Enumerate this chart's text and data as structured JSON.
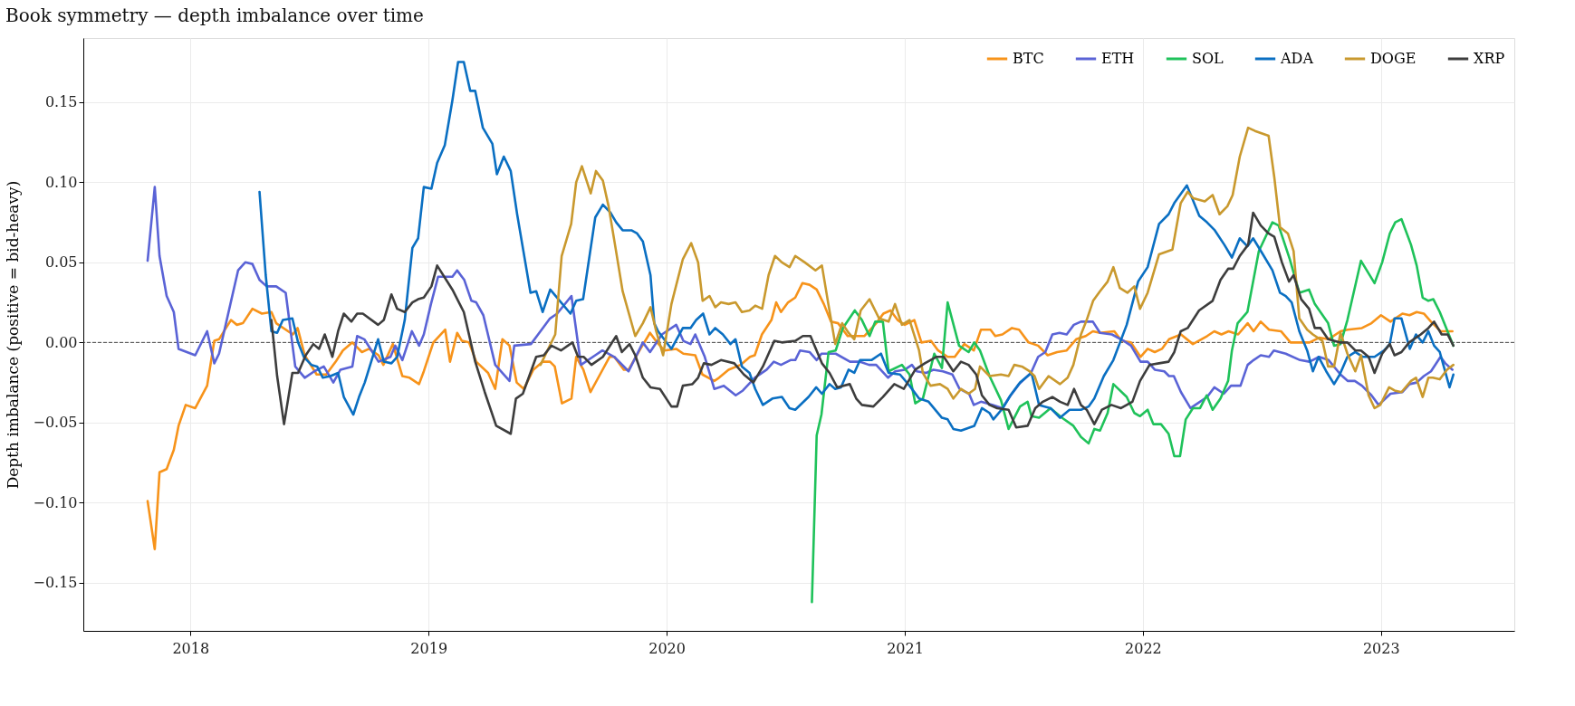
{
  "chart_data": {
    "type": "line",
    "title": "Book symmetry — depth imbalance over time",
    "ylabel": "Depth imbalance  (positive = bid-heavy)",
    "xlim": [
      2017.55,
      2023.56
    ],
    "xticks": [
      2018,
      2019,
      2020,
      2021,
      2022,
      2023
    ],
    "ylim": [
      -0.18,
      0.19
    ],
    "yticks": [
      {
        "value": -0.15,
        "label": "−0.15"
      },
      {
        "value": -0.1,
        "label": "−0.10"
      },
      {
        "value": -0.05,
        "label": "−0.05"
      },
      {
        "value": 0,
        "label": "0.00"
      },
      {
        "value": 0.05,
        "label": "0.05"
      },
      {
        "value": 0.1,
        "label": "0.10"
      },
      {
        "value": 0.15,
        "label": "0.15"
      }
    ],
    "grid": true,
    "legend": "top right",
    "marker": "none",
    "line_style": "solid",
    "ref_lines": [
      {
        "axis": "y",
        "value": 0,
        "color": "#444444",
        "line_style": "dashed"
      }
    ],
    "series": [
      {
        "name": "BTC",
        "color": "#f7931a",
        "x": [
          2017.82,
          2017.85,
          2017.87,
          2017.9,
          2017.93,
          2017.95,
          2017.98,
          2018.02,
          2018.07,
          2018.1,
          2018.12,
          2018.145,
          2018.17,
          2018.195,
          2018.22,
          2018.26,
          2018.3,
          2018.34,
          2018.36,
          2018.43,
          2018.45,
          2018.48,
          2018.53,
          2018.57,
          2018.61,
          2018.64,
          2018.68,
          2018.72,
          2018.75,
          2018.79,
          2018.81,
          2018.85,
          2018.89,
          2018.92,
          2018.96,
          2018.98,
          2019.02,
          2019.07,
          2019.09,
          2019.12,
          2019.14,
          2019.17,
          2019.2,
          2019.25,
          2019.28,
          2019.31,
          2019.34,
          2019.37,
          2019.4,
          2019.44,
          2019.48,
          2019.51,
          2019.53,
          2019.56,
          2019.6,
          2019.62,
          2019.65,
          2019.68,
          2019.72,
          2019.76,
          2019.78,
          2019.82,
          2019.84,
          2019.89,
          2019.93,
          2019.96,
          2019.99,
          2020.04,
          2020.07,
          2020.12,
          2020.15,
          2020.2,
          2020.22,
          2020.26,
          2020.31,
          2020.35,
          2020.37,
          2020.4,
          2020.44,
          2020.46,
          2020.48,
          2020.51,
          2020.54,
          2020.57,
          2020.6,
          2020.63,
          2020.66,
          2020.69,
          2020.72,
          2020.76,
          2020.8,
          2020.83,
          2020.88,
          2020.91,
          2020.94,
          2020.97,
          2021.0,
          2021.04,
          2021.07,
          2021.11,
          2021.14,
          2021.18,
          2021.21,
          2021.25,
          2021.29,
          2021.32,
          2021.36,
          2021.38,
          2021.41,
          2021.45,
          2021.48,
          2021.52,
          2021.56,
          2021.6,
          2021.64,
          2021.68,
          2021.72,
          2021.76,
          2021.79,
          2021.82,
          2021.88,
          2021.91,
          2021.95,
          2021.99,
          2022.02,
          2022.05,
          2022.08,
          2022.11,
          2022.16,
          2022.21,
          2022.27,
          2022.3,
          2022.33,
          2022.36,
          2022.4,
          2022.44,
          2022.465,
          2022.495,
          2022.53,
          2022.58,
          2022.62,
          2022.665,
          2022.7,
          2022.74,
          2022.78,
          2022.83,
          2022.86,
          2022.92,
          2022.96,
          2023.0,
          2023.04,
          2023.09,
          2023.12,
          2023.15,
          2023.18,
          2023.21,
          2023.25,
          2023.3
        ],
        "values": [
          -0.099,
          -0.129,
          -0.081,
          -0.079,
          -0.067,
          -0.052,
          -0.039,
          -0.041,
          -0.027,
          0.001,
          0.002,
          0.008,
          0.014,
          0.011,
          0.012,
          0.021,
          0.018,
          0.019,
          0.012,
          0.005,
          0.009,
          -0.008,
          -0.02,
          -0.02,
          -0.012,
          -0.005,
          0.0,
          -0.006,
          -0.004,
          -0.008,
          -0.014,
          -0.001,
          -0.021,
          -0.022,
          -0.026,
          -0.018,
          0.0,
          0.008,
          -0.012,
          0.006,
          0.001,
          0.0,
          -0.012,
          -0.019,
          -0.029,
          0.002,
          -0.002,
          -0.025,
          -0.029,
          -0.017,
          -0.012,
          -0.012,
          -0.015,
          -0.038,
          -0.035,
          -0.009,
          -0.017,
          -0.031,
          -0.02,
          -0.009,
          -0.009,
          -0.017,
          -0.017,
          -0.004,
          0.006,
          0.0,
          -0.005,
          -0.004,
          -0.007,
          -0.008,
          -0.02,
          -0.024,
          -0.022,
          -0.017,
          -0.014,
          -0.009,
          -0.008,
          0.005,
          0.014,
          0.025,
          0.019,
          0.025,
          0.028,
          0.037,
          0.036,
          0.033,
          0.024,
          0.013,
          0.012,
          0.004,
          0.004,
          0.004,
          0.012,
          0.018,
          0.02,
          0.014,
          0.011,
          0.014,
          0.0,
          0.001,
          -0.005,
          -0.009,
          -0.009,
          -0.001,
          -0.005,
          0.008,
          0.008,
          0.004,
          0.005,
          0.009,
          0.008,
          0.0,
          -0.002,
          -0.008,
          -0.006,
          -0.005,
          0.002,
          0.004,
          0.007,
          0.006,
          0.007,
          0.001,
          0.0,
          -0.009,
          -0.004,
          -0.006,
          -0.004,
          0.002,
          0.005,
          -0.001,
          0.004,
          0.007,
          0.005,
          0.007,
          0.005,
          0.012,
          0.007,
          0.013,
          0.008,
          0.007,
          0.0,
          0.0,
          0.0,
          0.003,
          0.002,
          0.007,
          0.008,
          0.009,
          0.012,
          0.017,
          0.013,
          0.018,
          0.017,
          0.019,
          0.018,
          0.013,
          0.007,
          0.007
        ]
      },
      {
        "name": "ETH",
        "color": "#5a63d6",
        "x": [
          2017.82,
          2017.85,
          2017.87,
          2017.9,
          2017.93,
          2017.95,
          2018.02,
          2018.07,
          2018.1,
          2018.12,
          2018.2,
          2018.23,
          2018.26,
          2018.29,
          2018.32,
          2018.36,
          2018.4,
          2018.44,
          2018.48,
          2018.52,
          2018.56,
          2018.6,
          2018.63,
          2018.68,
          2018.7,
          2018.73,
          2018.79,
          2018.84,
          2018.86,
          2018.89,
          2018.93,
          2018.96,
          2018.98,
          2019.01,
          2019.04,
          2019.1,
          2019.12,
          2019.15,
          2019.18,
          2019.2,
          2019.23,
          2019.28,
          2019.34,
          2019.36,
          2019.43,
          2019.46,
          2019.51,
          2019.54,
          2019.6,
          2019.64,
          2019.7,
          2019.73,
          2019.78,
          2019.84,
          2019.9,
          2019.93,
          2019.98,
          2020.04,
          2020.07,
          2020.1,
          2020.12,
          2020.16,
          2020.2,
          2020.24,
          2020.29,
          2020.32,
          2020.37,
          2020.42,
          2020.45,
          2020.48,
          2020.52,
          2020.54,
          2020.56,
          2020.6,
          2020.63,
          2020.65,
          2020.71,
          2020.77,
          2020.81,
          2020.85,
          2020.88,
          2020.93,
          2020.96,
          2021.0,
          2021.03,
          2021.05,
          2021.09,
          2021.12,
          2021.16,
          2021.2,
          2021.23,
          2021.27,
          2021.29,
          2021.32,
          2021.37,
          2021.41,
          2021.44,
          2021.48,
          2021.53,
          2021.56,
          2021.59,
          2021.62,
          2021.65,
          2021.68,
          2021.71,
          2021.74,
          2021.79,
          2021.82,
          2021.87,
          2021.92,
          2021.95,
          2021.99,
          2022.02,
          2022.05,
          2022.09,
          2022.11,
          2022.13,
          2022.16,
          2022.2,
          2022.24,
          2022.27,
          2022.3,
          2022.34,
          2022.37,
          2022.41,
          2022.44,
          2022.465,
          2022.495,
          2022.53,
          2022.55,
          2022.6,
          2022.66,
          2022.7,
          2022.74,
          2022.78,
          2022.83,
          2022.86,
          2022.89,
          2022.92,
          2022.96,
          2022.99,
          2023.04,
          2023.09,
          2023.12,
          2023.15,
          2023.18,
          2023.21,
          2023.25,
          2023.27,
          2023.3
        ],
        "values": [
          0.051,
          0.097,
          0.054,
          0.029,
          0.019,
          -0.004,
          -0.008,
          0.007,
          -0.013,
          -0.007,
          0.045,
          0.05,
          0.049,
          0.039,
          0.035,
          0.035,
          0.031,
          -0.015,
          -0.022,
          -0.018,
          -0.015,
          -0.025,
          -0.017,
          -0.015,
          0.004,
          0.002,
          -0.012,
          -0.009,
          -0.002,
          -0.011,
          0.007,
          -0.002,
          0.005,
          0.024,
          0.041,
          0.041,
          0.045,
          0.039,
          0.026,
          0.025,
          0.017,
          -0.014,
          -0.024,
          -0.002,
          -0.001,
          0.005,
          0.015,
          0.018,
          0.029,
          -0.014,
          -0.008,
          -0.005,
          -0.009,
          -0.018,
          0.0,
          -0.006,
          0.005,
          0.011,
          0.001,
          -0.001,
          0.005,
          -0.009,
          -0.029,
          -0.027,
          -0.033,
          -0.03,
          -0.022,
          -0.017,
          -0.012,
          -0.014,
          -0.011,
          -0.011,
          -0.005,
          -0.006,
          -0.011,
          -0.007,
          -0.007,
          -0.012,
          -0.012,
          -0.014,
          -0.014,
          -0.022,
          -0.018,
          -0.017,
          -0.014,
          -0.018,
          -0.019,
          -0.017,
          -0.018,
          -0.02,
          -0.029,
          -0.032,
          -0.039,
          -0.037,
          -0.039,
          -0.041,
          -0.034,
          -0.026,
          -0.019,
          -0.009,
          -0.006,
          0.005,
          0.006,
          0.005,
          0.011,
          0.013,
          0.013,
          0.006,
          0.005,
          0.001,
          -0.002,
          -0.012,
          -0.012,
          -0.017,
          -0.018,
          -0.021,
          -0.021,
          -0.031,
          -0.041,
          -0.037,
          -0.034,
          -0.028,
          -0.032,
          -0.027,
          -0.027,
          -0.014,
          -0.011,
          -0.008,
          -0.009,
          -0.005,
          -0.007,
          -0.011,
          -0.012,
          -0.009,
          -0.011,
          -0.02,
          -0.024,
          -0.024,
          -0.027,
          -0.033,
          -0.039,
          -0.032,
          -0.031,
          -0.026,
          -0.025,
          -0.021,
          -0.018,
          -0.009,
          -0.013,
          -0.017
        ]
      },
      {
        "name": "SOL",
        "color": "#1fc25a",
        "x": [
          2020.61,
          2020.63,
          2020.65,
          2020.68,
          2020.71,
          2020.74,
          2020.79,
          2020.82,
          2020.852,
          2020.876,
          2020.908,
          2020.932,
          2020.988,
          2021.02,
          2021.044,
          2021.076,
          2021.124,
          2021.156,
          2021.18,
          2021.228,
          2021.268,
          2021.292,
          2021.316,
          2021.356,
          2021.404,
          2021.436,
          2021.484,
          2021.516,
          2021.532,
          2021.564,
          2021.612,
          2021.66,
          2021.708,
          2021.74,
          2021.772,
          2021.796,
          2021.82,
          2021.852,
          2021.876,
          2021.932,
          2021.964,
          2021.988,
          2022.02,
          2022.044,
          2022.076,
          2022.108,
          2022.132,
          2022.156,
          2022.18,
          2022.21,
          2022.24,
          2022.268,
          2022.293,
          2022.326,
          2022.358,
          2022.374,
          2022.398,
          2022.439,
          2022.487,
          2022.544,
          2022.57,
          2022.617,
          2022.657,
          2022.698,
          2022.722,
          2022.778,
          2022.803,
          2022.83,
          2022.859,
          2022.916,
          2022.973,
          2023.005,
          2023.037,
          2023.06,
          2023.086,
          2023.126,
          2023.15,
          2023.175,
          2023.199,
          2023.22,
          2023.247,
          2023.304
        ],
        "values": [
          -0.162,
          -0.058,
          -0.045,
          -0.006,
          -0.005,
          0.009,
          0.02,
          0.014,
          0.004,
          0.013,
          0.013,
          -0.018,
          -0.014,
          -0.02,
          -0.038,
          -0.035,
          -0.007,
          -0.016,
          0.025,
          -0.002,
          -0.006,
          0.0,
          -0.005,
          -0.021,
          -0.036,
          -0.054,
          -0.04,
          -0.037,
          -0.046,
          -0.047,
          -0.041,
          -0.047,
          -0.052,
          -0.059,
          -0.063,
          -0.054,
          -0.055,
          -0.044,
          -0.026,
          -0.034,
          -0.044,
          -0.046,
          -0.042,
          -0.051,
          -0.051,
          -0.057,
          -0.071,
          -0.071,
          -0.048,
          -0.041,
          -0.041,
          -0.033,
          -0.042,
          -0.035,
          -0.024,
          -0.005,
          0.012,
          0.019,
          0.057,
          0.075,
          0.073,
          0.052,
          0.031,
          0.033,
          0.024,
          0.012,
          -0.002,
          -0.001,
          0.014,
          0.051,
          0.037,
          0.05,
          0.068,
          0.075,
          0.077,
          0.061,
          0.048,
          0.028,
          0.026,
          0.027,
          0.019,
          -0.002
        ]
      },
      {
        "name": "ADA",
        "color": "#0a6fc2",
        "x": [
          2018.29,
          2018.316,
          2018.34,
          2018.364,
          2018.388,
          2018.428,
          2018.452,
          2018.476,
          2018.508,
          2018.532,
          2018.556,
          2018.588,
          2018.62,
          2018.644,
          2018.684,
          2018.708,
          2018.732,
          2018.788,
          2018.812,
          2018.844,
          2018.868,
          2018.9,
          2018.932,
          2018.956,
          2018.98,
          2019.012,
          2019.036,
          2019.068,
          2019.1,
          2019.124,
          2019.148,
          2019.175,
          2019.196,
          2019.228,
          2019.268,
          2019.287,
          2019.316,
          2019.345,
          2019.372,
          2019.428,
          2019.452,
          2019.479,
          2019.511,
          2019.596,
          2019.62,
          2019.649,
          2019.7,
          2019.732,
          2019.764,
          2019.788,
          2019.815,
          2019.852,
          2019.876,
          2019.9,
          2019.932,
          2019.948,
          2019.964,
          2020.02,
          2020.068,
          2020.1,
          2020.124,
          2020.153,
          2020.18,
          2020.204,
          2020.236,
          2020.268,
          2020.289,
          2020.316,
          2020.348,
          2020.372,
          2020.404,
          2020.444,
          2020.484,
          2020.516,
          2020.54,
          2020.596,
          2020.628,
          2020.652,
          2020.684,
          2020.708,
          2020.732,
          2020.764,
          2020.788,
          2020.812,
          2020.86,
          2020.9,
          2020.932,
          2020.98,
          2021.02,
          2021.06,
          2021.1,
          2021.156,
          2021.18,
          2021.204,
          2021.236,
          2021.292,
          2021.324,
          2021.356,
          2021.372,
          2021.412,
          2021.444,
          2021.484,
          2021.532,
          2021.564,
          2021.612,
          2021.652,
          2021.692,
          2021.74,
          2021.772,
          2021.796,
          2021.836,
          2021.876,
          2021.932,
          2021.98,
          2022.02,
          2022.068,
          2022.108,
          2022.132,
          2022.185,
          2022.237,
          2022.269,
          2022.302,
          2022.342,
          2022.374,
          2022.407,
          2022.439,
          2022.463,
          2022.504,
          2022.544,
          2022.576,
          2022.6,
          2022.625,
          2022.657,
          2022.69,
          2022.714,
          2022.738,
          2022.77,
          2022.803,
          2022.827,
          2022.859,
          2022.892,
          2022.924,
          2022.973,
          2023.013,
          2023.037,
          2023.057,
          2023.086,
          2023.121,
          2023.147,
          2023.175,
          2023.199,
          2023.223,
          2023.247,
          2023.288,
          2023.304
        ],
        "values": [
          0.094,
          0.042,
          0.007,
          0.006,
          0.014,
          0.015,
          0.0,
          -0.009,
          -0.014,
          -0.015,
          -0.022,
          -0.021,
          -0.019,
          -0.034,
          -0.045,
          -0.034,
          -0.025,
          0.002,
          -0.012,
          -0.013,
          -0.009,
          0.014,
          0.059,
          0.065,
          0.097,
          0.096,
          0.112,
          0.123,
          0.151,
          0.175,
          0.175,
          0.157,
          0.157,
          0.134,
          0.124,
          0.105,
          0.116,
          0.107,
          0.08,
          0.031,
          0.032,
          0.019,
          0.033,
          0.018,
          0.026,
          0.027,
          0.078,
          0.086,
          0.081,
          0.075,
          0.07,
          0.07,
          0.068,
          0.063,
          0.042,
          0.012,
          0.007,
          -0.004,
          0.009,
          0.009,
          0.014,
          0.018,
          0.005,
          0.009,
          0.005,
          -0.001,
          0.002,
          -0.015,
          -0.019,
          -0.029,
          -0.039,
          -0.035,
          -0.034,
          -0.041,
          -0.042,
          -0.034,
          -0.028,
          -0.032,
          -0.026,
          -0.029,
          -0.028,
          -0.017,
          -0.019,
          -0.011,
          -0.011,
          -0.007,
          -0.019,
          -0.02,
          -0.027,
          -0.035,
          -0.037,
          -0.047,
          -0.048,
          -0.054,
          -0.055,
          -0.052,
          -0.041,
          -0.044,
          -0.048,
          -0.041,
          -0.033,
          -0.025,
          -0.019,
          -0.039,
          -0.041,
          -0.047,
          -0.042,
          -0.042,
          -0.04,
          -0.035,
          -0.021,
          -0.011,
          0.011,
          0.038,
          0.047,
          0.074,
          0.08,
          0.087,
          0.098,
          0.079,
          0.075,
          0.07,
          0.061,
          0.053,
          0.065,
          0.06,
          0.065,
          0.055,
          0.045,
          0.031,
          0.029,
          0.025,
          0.007,
          -0.005,
          -0.018,
          -0.009,
          -0.018,
          -0.026,
          -0.02,
          -0.009,
          -0.006,
          -0.009,
          -0.009,
          -0.005,
          -0.001,
          0.015,
          0.015,
          -0.004,
          0.005,
          0.0,
          0.007,
          -0.002,
          -0.006,
          -0.028,
          -0.02
        ]
      },
      {
        "name": "DOGE",
        "color": "#c9992e",
        "x": [
          2019.47,
          2019.532,
          2019.559,
          2019.599,
          2019.62,
          2019.644,
          2019.681,
          2019.703,
          2019.732,
          2019.756,
          2019.783,
          2019.815,
          2019.868,
          2019.9,
          2019.932,
          2019.956,
          2019.985,
          2020.02,
          2020.068,
          2020.103,
          2020.132,
          2020.151,
          2020.18,
          2020.204,
          2020.228,
          2020.26,
          2020.289,
          2020.316,
          2020.348,
          2020.372,
          2020.401,
          2020.428,
          2020.455,
          2020.484,
          2020.516,
          2020.54,
          2020.58,
          2020.625,
          2020.652,
          2020.679,
          2020.708,
          2020.737,
          2020.764,
          2020.788,
          2020.815,
          2020.852,
          2020.892,
          2020.932,
          2020.959,
          2020.988,
          2021.02,
          2021.06,
          2021.076,
          2021.108,
          2021.148,
          2021.18,
          2021.204,
          2021.236,
          2021.268,
          2021.295,
          2021.316,
          2021.356,
          2021.404,
          2021.436,
          2021.46,
          2021.492,
          2021.524,
          2021.545,
          2021.564,
          2021.604,
          2021.652,
          2021.684,
          2021.708,
          2021.74,
          2021.764,
          2021.791,
          2021.82,
          2021.852,
          2021.876,
          2021.903,
          2021.935,
          2021.964,
          2021.988,
          2022.02,
          2022.068,
          2022.124,
          2022.159,
          2022.188,
          2022.212,
          2022.26,
          2022.293,
          2022.322,
          2022.355,
          2022.377,
          2022.407,
          2022.442,
          2022.471,
          2022.528,
          2022.552,
          2022.576,
          2022.609,
          2022.633,
          2022.657,
          2022.69,
          2022.714,
          2022.754,
          2022.778,
          2022.803,
          2022.83,
          2022.859,
          2022.892,
          2022.916,
          2022.948,
          2022.973,
          2022.997,
          2023.034,
          2023.057,
          2023.086,
          2023.126,
          2023.147,
          2023.175,
          2023.199,
          2023.218,
          2023.247,
          2023.277,
          2023.304
        ],
        "values": [
          -0.014,
          0.005,
          0.054,
          0.074,
          0.1,
          0.11,
          0.093,
          0.107,
          0.101,
          0.085,
          0.061,
          0.032,
          0.004,
          0.012,
          0.022,
          0.007,
          -0.008,
          0.024,
          0.052,
          0.062,
          0.05,
          0.026,
          0.029,
          0.022,
          0.025,
          0.024,
          0.025,
          0.019,
          0.02,
          0.023,
          0.021,
          0.042,
          0.054,
          0.05,
          0.047,
          0.054,
          0.05,
          0.045,
          0.048,
          0.024,
          -0.001,
          0.012,
          0.006,
          0.002,
          0.02,
          0.027,
          0.015,
          0.013,
          0.024,
          0.011,
          0.014,
          -0.005,
          -0.019,
          -0.027,
          -0.026,
          -0.029,
          -0.035,
          -0.029,
          -0.032,
          -0.029,
          -0.015,
          -0.021,
          -0.02,
          -0.021,
          -0.014,
          -0.015,
          -0.018,
          -0.021,
          -0.029,
          -0.021,
          -0.026,
          -0.022,
          -0.014,
          0.005,
          0.014,
          0.026,
          0.032,
          0.038,
          0.047,
          0.034,
          0.031,
          0.035,
          0.021,
          0.031,
          0.055,
          0.058,
          0.087,
          0.094,
          0.09,
          0.088,
          0.092,
          0.08,
          0.085,
          0.092,
          0.116,
          0.134,
          0.132,
          0.129,
          0.103,
          0.072,
          0.068,
          0.057,
          0.015,
          0.008,
          0.005,
          0.001,
          -0.015,
          -0.015,
          0.006,
          -0.007,
          -0.018,
          -0.008,
          -0.033,
          -0.041,
          -0.039,
          -0.028,
          -0.03,
          -0.031,
          -0.024,
          -0.022,
          -0.034,
          -0.022,
          -0.022,
          -0.023,
          -0.017,
          -0.014
        ]
      },
      {
        "name": "XRP",
        "color": "#3d3d3d",
        "x": [
          2018.34,
          2018.364,
          2018.393,
          2018.428,
          2018.452,
          2018.484,
          2018.516,
          2018.54,
          2018.564,
          2018.596,
          2018.62,
          2018.644,
          2018.676,
          2018.7,
          2018.724,
          2018.788,
          2018.812,
          2018.844,
          2018.868,
          2018.9,
          2018.932,
          2018.956,
          2018.98,
          2019.012,
          2019.036,
          2019.1,
          2019.148,
          2019.196,
          2019.236,
          2019.284,
          2019.345,
          2019.367,
          2019.396,
          2019.452,
          2019.484,
          2019.516,
          2019.556,
          2019.604,
          2019.628,
          2019.652,
          2019.684,
          2019.732,
          2019.788,
          2019.812,
          2019.844,
          2019.868,
          2019.9,
          2019.932,
          2019.972,
          2020.02,
          2020.044,
          2020.068,
          2020.108,
          2020.132,
          2020.156,
          2020.188,
          2020.228,
          2020.284,
          2020.324,
          2020.364,
          2020.404,
          2020.452,
          2020.484,
          2020.54,
          2020.572,
          2020.604,
          2020.652,
          2020.684,
          2020.716,
          2020.769,
          2020.796,
          2020.82,
          2020.868,
          2020.908,
          2020.956,
          2020.996,
          2021.044,
          2021.084,
          2021.132,
          2021.164,
          2021.204,
          2021.236,
          2021.268,
          2021.3,
          2021.324,
          2021.356,
          2021.388,
          2021.436,
          2021.468,
          2021.516,
          2021.548,
          2021.58,
          2021.62,
          2021.652,
          2021.684,
          2021.711,
          2021.74,
          2021.764,
          2021.796,
          2021.828,
          2021.868,
          2021.908,
          2021.956,
          2021.988,
          2022.028,
          2022.068,
          2022.108,
          2022.132,
          2022.159,
          2022.188,
          2022.236,
          2022.293,
          2022.326,
          2022.358,
          2022.379,
          2022.407,
          2022.442,
          2022.463,
          2022.495,
          2022.528,
          2022.552,
          2022.584,
          2022.614,
          2022.633,
          2022.665,
          2022.698,
          2022.722,
          2022.746,
          2022.778,
          2022.827,
          2022.859,
          2022.892,
          2022.916,
          2022.948,
          2022.973,
          2023.005,
          2023.037,
          2023.057,
          2023.086,
          2023.118,
          2023.167,
          2023.199,
          2023.223,
          2023.255,
          2023.28,
          2023.304
        ],
        "values": [
          0.014,
          -0.021,
          -0.051,
          -0.019,
          -0.019,
          -0.008,
          -0.001,
          -0.004,
          0.005,
          -0.009,
          0.007,
          0.018,
          0.013,
          0.018,
          0.018,
          0.011,
          0.014,
          0.03,
          0.021,
          0.019,
          0.025,
          0.027,
          0.028,
          0.035,
          0.048,
          0.033,
          0.019,
          -0.012,
          -0.031,
          -0.052,
          -0.057,
          -0.035,
          -0.032,
          -0.009,
          -0.008,
          -0.002,
          -0.005,
          0.0,
          -0.009,
          -0.009,
          -0.014,
          -0.009,
          0.004,
          -0.006,
          -0.001,
          -0.008,
          -0.022,
          -0.028,
          -0.029,
          -0.04,
          -0.04,
          -0.027,
          -0.026,
          -0.022,
          -0.013,
          -0.014,
          -0.011,
          -0.013,
          -0.02,
          -0.025,
          -0.015,
          0.001,
          0.0,
          0.001,
          0.004,
          0.004,
          -0.013,
          -0.019,
          -0.028,
          -0.026,
          -0.035,
          -0.039,
          -0.04,
          -0.034,
          -0.026,
          -0.029,
          -0.017,
          -0.013,
          -0.009,
          -0.009,
          -0.018,
          -0.012,
          -0.014,
          -0.02,
          -0.033,
          -0.039,
          -0.041,
          -0.042,
          -0.053,
          -0.052,
          -0.041,
          -0.037,
          -0.034,
          -0.037,
          -0.039,
          -0.029,
          -0.039,
          -0.042,
          -0.051,
          -0.042,
          -0.039,
          -0.041,
          -0.037,
          -0.024,
          -0.014,
          -0.013,
          -0.012,
          -0.006,
          0.007,
          0.009,
          0.02,
          0.026,
          0.039,
          0.046,
          0.046,
          0.054,
          0.061,
          0.081,
          0.073,
          0.068,
          0.066,
          0.05,
          0.038,
          0.042,
          0.027,
          0.021,
          0.009,
          0.009,
          0.002,
          0.0,
          0.0,
          -0.005,
          -0.005,
          -0.009,
          -0.019,
          -0.007,
          -0.001,
          -0.008,
          -0.006,
          0.0,
          0.005,
          0.009,
          0.013,
          0.005,
          0.005,
          -0.002
        ]
      }
    ]
  }
}
